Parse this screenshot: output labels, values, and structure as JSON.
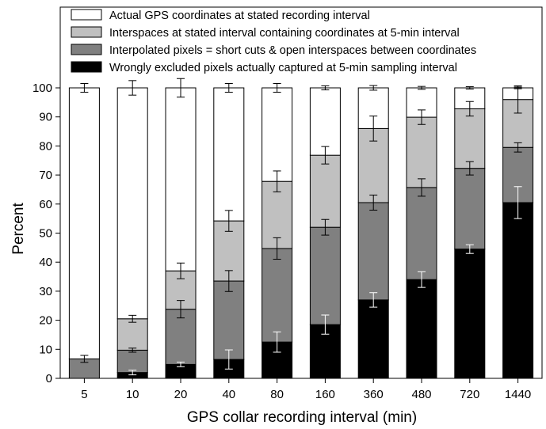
{
  "chart_data": {
    "type": "bar",
    "stacked": true,
    "title": "",
    "xlabel": "GPS collar recording interval (min)",
    "ylabel": "Percent",
    "ylim": [
      0,
      100
    ],
    "yticks": [
      0,
      10,
      20,
      30,
      40,
      50,
      60,
      70,
      80,
      90,
      100
    ],
    "grid": false,
    "legend_position": "top",
    "categories": [
      "5",
      "10",
      "20",
      "40",
      "80",
      "160",
      "360",
      "480",
      "720",
      "1440"
    ],
    "series": [
      {
        "name": "Wrongly excluded pixels actually captured at 5-min sampling interval",
        "color": "#000000",
        "error_color": "#ffffff",
        "values": [
          0,
          2,
          4.8,
          6.5,
          12.5,
          18.5,
          27,
          34,
          44.5,
          60.5
        ],
        "errors": [
          0,
          0.8,
          0.8,
          3.3,
          3.5,
          3.3,
          2.5,
          2.7,
          1.5,
          5.5
        ]
      },
      {
        "name": "Interpolated pixels = short cuts & open interspaces between coordinates",
        "color": "#808080",
        "error_color": "#000000",
        "values": [
          6.7,
          7.7,
          19,
          27,
          32.2,
          33.5,
          33.5,
          31.7,
          27.8,
          19
        ],
        "errors": [
          1.2,
          0.7,
          3.0,
          3.6,
          3.7,
          2.7,
          2.6,
          3.0,
          2.3,
          1.6
        ]
      },
      {
        "name": "Interspaces at stated interval containing coordinates at 5-min interval",
        "color": "#c0c0c0",
        "error_color": "#000000",
        "values": [
          0,
          10.8,
          13.2,
          20.7,
          23.1,
          24.8,
          25.5,
          24.2,
          20.5,
          16.5
        ],
        "errors": [
          0,
          1.2,
          2.7,
          3.6,
          3.6,
          3.0,
          4.3,
          2.5,
          2.5,
          4.7
        ]
      },
      {
        "name": "Actual GPS coordinates at stated recording interval",
        "color": "#ffffff",
        "error_color": "#000000",
        "values": [
          93.3,
          79.5,
          63,
          45.8,
          32.2,
          23.2,
          14,
          10.1,
          7.2,
          4
        ],
        "errors": [
          1.5,
          2.5,
          3.2,
          1.5,
          1.5,
          0.7,
          0.8,
          0.5,
          0.4,
          0.3
        ]
      }
    ]
  }
}
